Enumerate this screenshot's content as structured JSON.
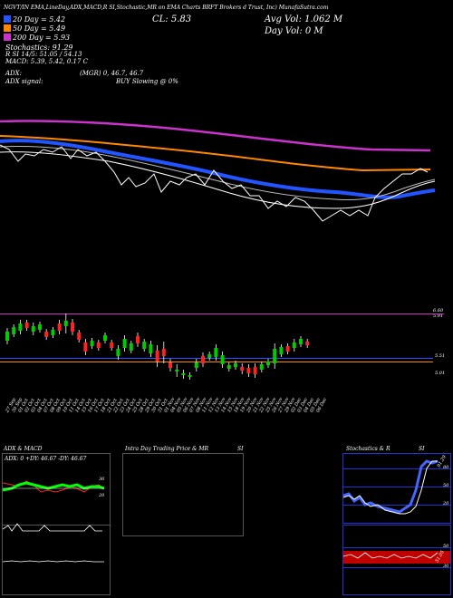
{
  "header": {
    "top_line": "NGVT/IN  EMA,LineDay,ADX,MACD,R  SI,Stochastic,MR  on EMA Charts BRFT  Brokers  d Trust, Inc) MunafaSutra.com",
    "ema_20": "20   Day = 5.42",
    "ema_50": "50   Day = 5.49",
    "ema_200": "200  Day = 5.93",
    "stochastics": "Stochastics: 91.29",
    "rsi": "R             SI 14/5: 51.05 / 54.13",
    "macd": "MACD: 5.39, 5.42, 0.17 C",
    "adx": "ADX:",
    "adx_values": "(MGR) 0, 46.7, 46.7",
    "adx_signal_label": "ADX  signal:",
    "adx_signal_value": "BUY Slowing @ 0%",
    "close": "CL: 5.83",
    "avg_vol": "Avg Vol: 1.062  M",
    "day_vol": "Day Vol: 0   M"
  },
  "price_axis": {
    "top_labels": [
      "6.60",
      "5.91"
    ],
    "mid_label": "5.51",
    "low_label": "5.01"
  },
  "date_labels": [
    "27 Sep",
    "30 Sep",
    "01 Oct",
    "02 Oct",
    "03 Oct",
    "04 Oct",
    "07 Oct",
    "08 Oct",
    "09 Oct",
    "10 Oct",
    "11 Oct",
    "14 Oct",
    "15 Oct",
    "16 Oct",
    "17 Oct",
    "18 Oct",
    "21 Oct",
    "22 Oct",
    "23 Oct",
    "24 Oct",
    "25 Oct",
    "28 Oct",
    "29 Oct",
    "30 Oct",
    "31 Oct",
    "01 Nov",
    "04 Nov",
    "05 Nov",
    "06 Nov",
    "07 Nov",
    "08 Nov",
    "11 Nov",
    "12 Nov",
    "13 Nov",
    "14 Nov",
    "15 Nov",
    "18 Nov",
    "19 Nov",
    "20 Nov",
    "21 Nov",
    "22 Nov",
    "25 Nov",
    "26 Nov",
    "27 Nov",
    "29 Nov",
    "02 Dec",
    "03 Dec",
    "04 Dec",
    "05 Dec",
    "06 Dec"
  ],
  "panels": {
    "adx": {
      "title": "ADX  & MACD",
      "values_line": "ADX: 0  +DY: 46.67  -DY: 46.67",
      "ticks": [
        "36",
        "20"
      ]
    },
    "intraday": {
      "title": "Intra Day Trading Price  & MR",
      "title_right": "SI"
    },
    "stoch": {
      "title": "Stochastics & R",
      "title_right": "SI",
      "ticks": [
        "80",
        "50",
        "20"
      ],
      "current": "91.29",
      "rsi_ticks": [
        "50",
        "30"
      ],
      "rsi_current": "51.05"
    }
  },
  "colors": {
    "up": "#00cc00",
    "down": "#ff2222",
    "ema200": "#cc33cc",
    "ema50": "#ff8800",
    "ema20": "#2255ff"
  }
}
